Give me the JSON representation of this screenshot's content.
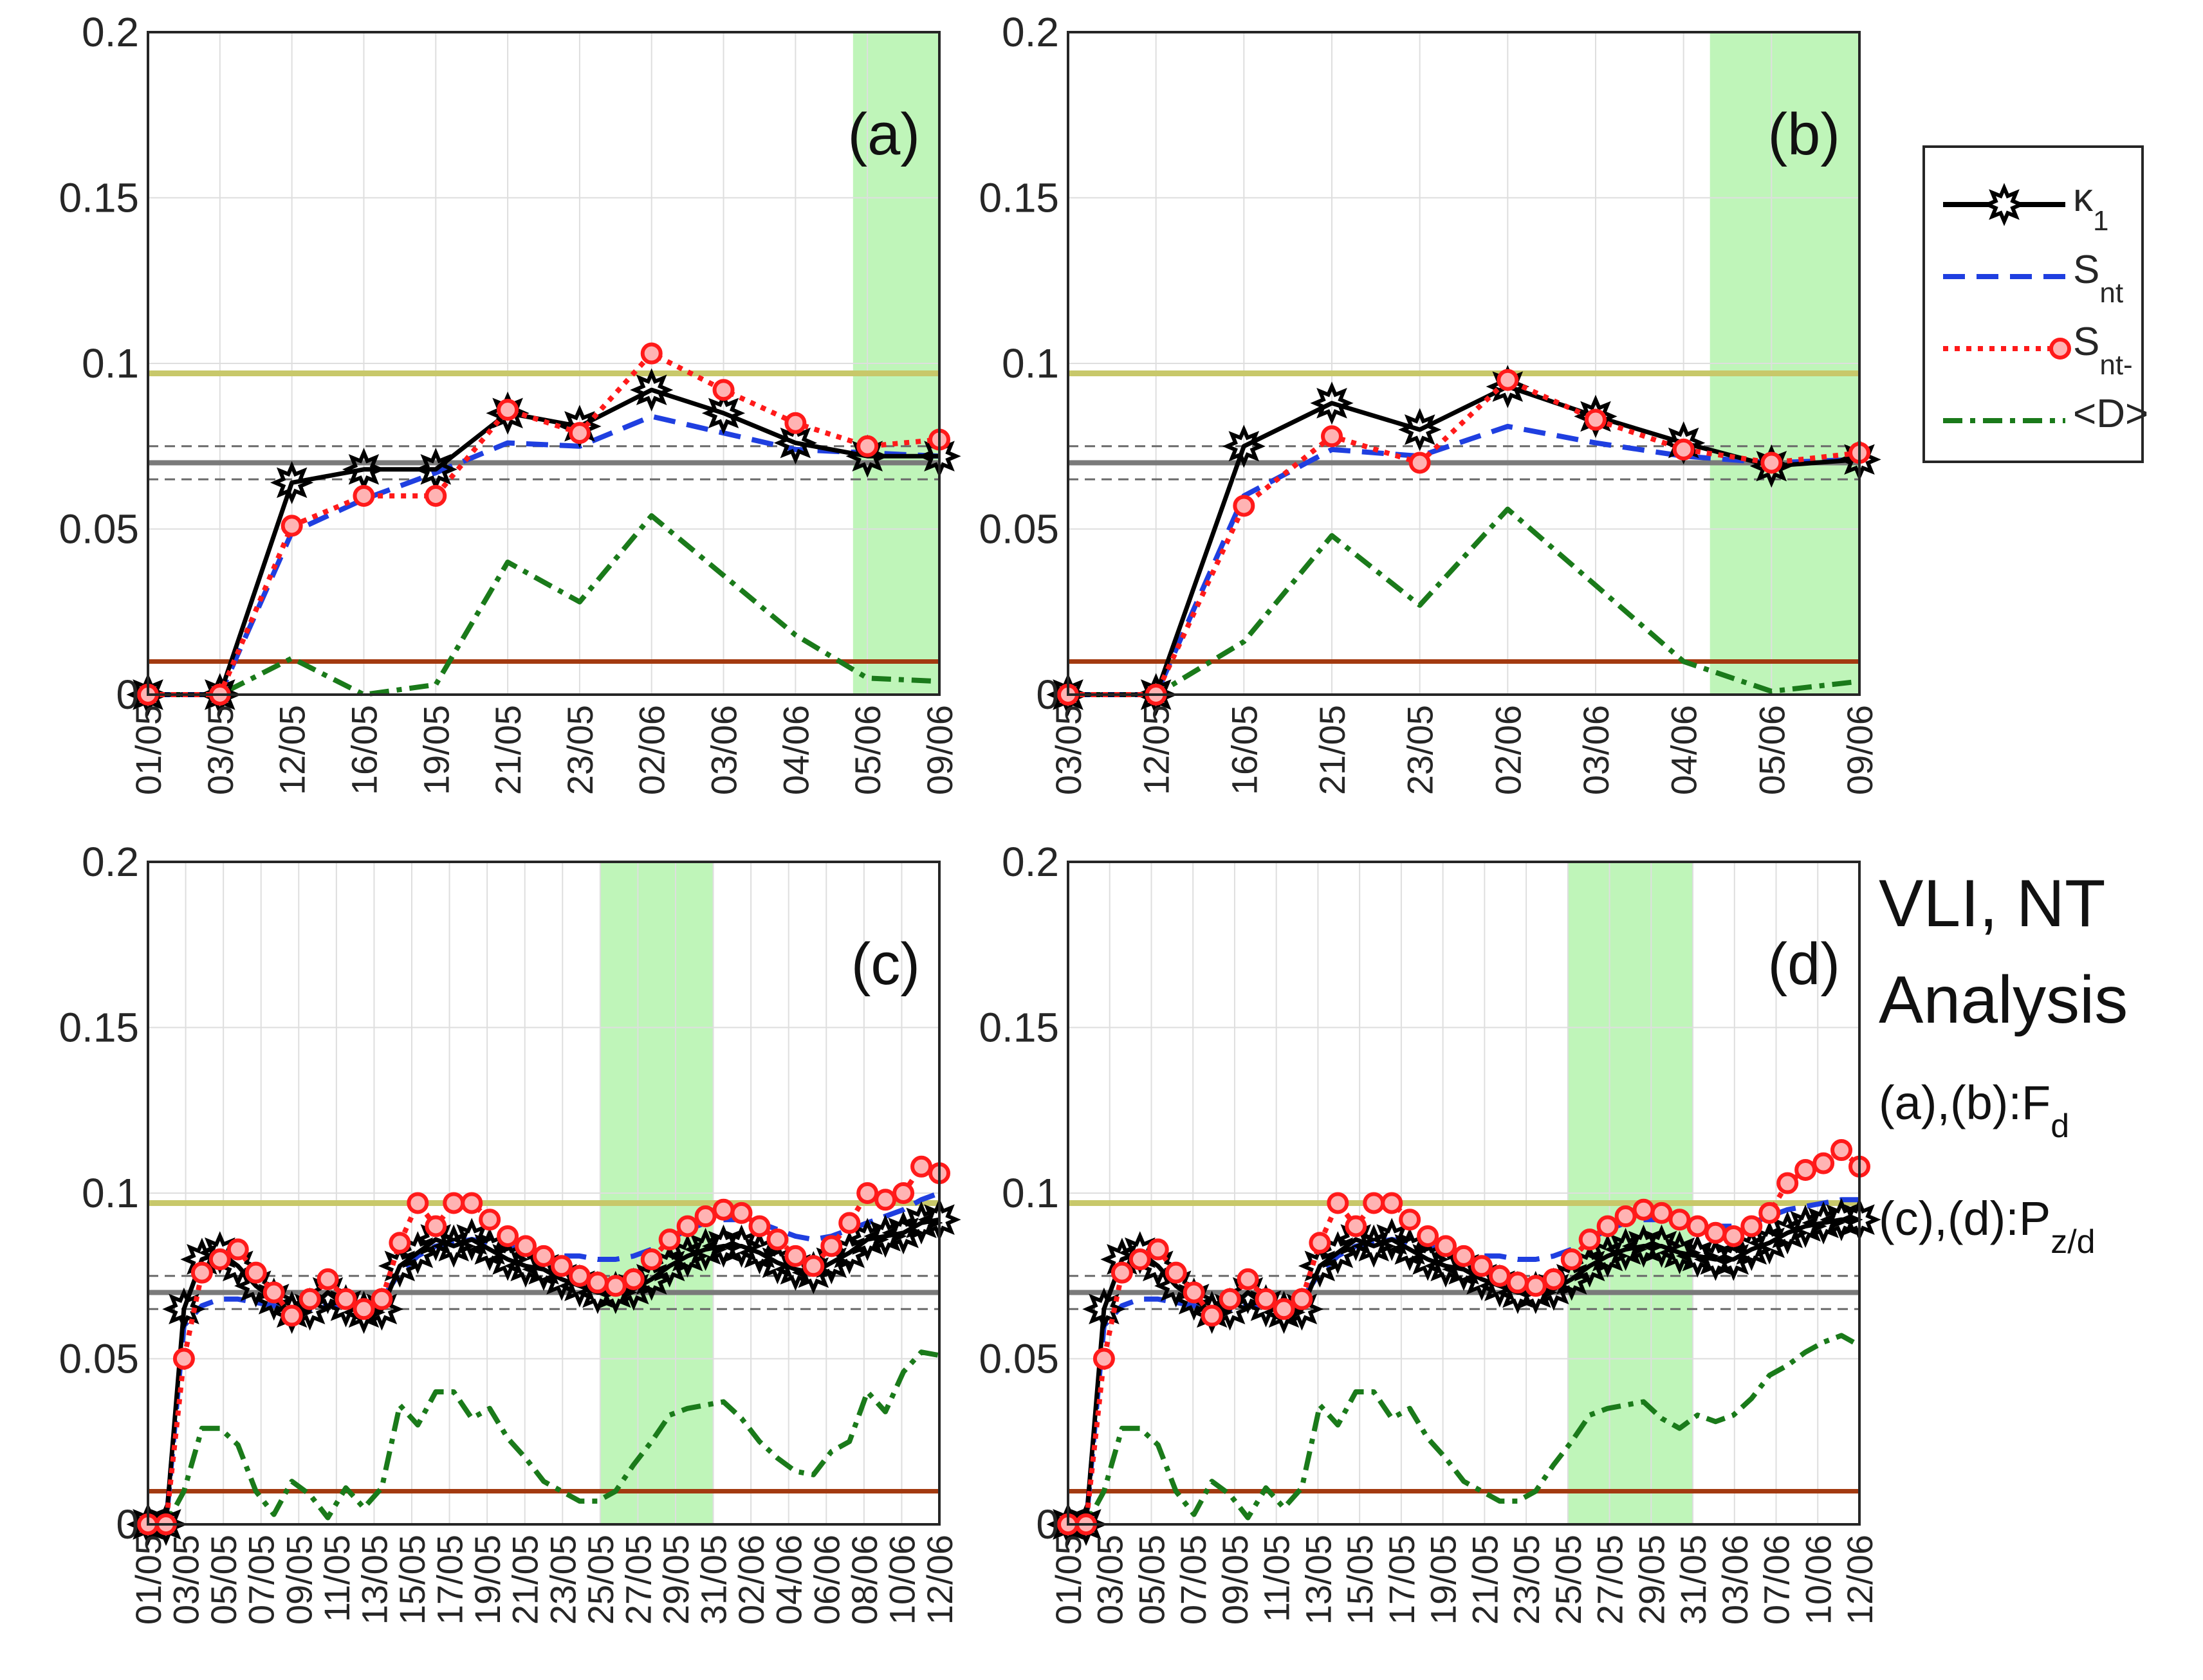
{
  "colors": {
    "kappa": "#000000",
    "snt": "#1f3fe0",
    "sntm": "#ff1a1a",
    "d": "#1a7a1a",
    "gray": "#7a7a7a",
    "olive": "#c8c86a",
    "brown": "#a33a10",
    "shade": "#bff5b9",
    "grid": "#dedede"
  },
  "legend": {
    "items": [
      {
        "key": "kappa",
        "label": "κ",
        "sub": "1",
        "style": "solid-marker"
      },
      {
        "key": "snt",
        "label": "S",
        "sub": "nt",
        "style": "dashed"
      },
      {
        "key": "sntm",
        "label": "S",
        "sub": "nt-",
        "style": "dotted-marker"
      },
      {
        "key": "d",
        "label": "<D>",
        "sub": "",
        "style": "dashdot"
      }
    ]
  },
  "caption": {
    "line1": "VLI, NT",
    "line2": "Analysis",
    "line3_main": "(a),(b):F",
    "line3_sub": "d",
    "line4_main": "(c),(d):P",
    "line4_sub": "z/d"
  },
  "chart_data": [
    {
      "type": "line",
      "id": "a",
      "panel_label": "(a)",
      "ylim": [
        0,
        0.2
      ],
      "yticks": [
        "0",
        "0.05",
        "0.1",
        "0.15",
        "0.2"
      ],
      "xticklabels": [
        "01/05",
        "03/05",
        "12/05",
        "16/05",
        "19/05",
        "21/05",
        "23/05",
        "02/06",
        "03/06",
        "04/06",
        "05/06",
        "09/06"
      ],
      "shade_index": [
        9.8,
        11
      ],
      "reference_lines": {
        "olive": 0.097,
        "gray": 0.07,
        "gray_dashed": [
          0.065,
          0.075
        ],
        "brown": 0.01
      },
      "series": [
        {
          "key": "kappa",
          "name": "κ1",
          "values": [
            0,
            0,
            0.064,
            0.068,
            0.068,
            0.085,
            0.081,
            0.092,
            0.085,
            0.076,
            0.072,
            0.072
          ]
        },
        {
          "key": "snt",
          "name": "Snt",
          "values": [
            0,
            0,
            0.049,
            0.059,
            0.067,
            0.076,
            0.075,
            0.084,
            0.079,
            0.074,
            0.073,
            0.072
          ]
        },
        {
          "key": "sntm",
          "name": "Snt-",
          "values": [
            0,
            0,
            0.051,
            0.06,
            0.06,
            0.086,
            0.079,
            0.103,
            0.092,
            0.082,
            0.075,
            0.077
          ]
        },
        {
          "key": "d",
          "name": "<D>",
          "values": [
            0,
            0,
            0.011,
            0.0,
            0.003,
            0.04,
            0.028,
            0.054,
            0.036,
            0.018,
            0.005,
            0.004
          ]
        }
      ]
    },
    {
      "type": "line",
      "id": "b",
      "panel_label": "(b)",
      "ylim": [
        0,
        0.2
      ],
      "yticks": [
        "0",
        "0.05",
        "0.1",
        "0.15",
        "0.2"
      ],
      "xticklabels": [
        "03/05",
        "12/05",
        "16/05",
        "21/05",
        "23/05",
        "02/06",
        "03/06",
        "04/06",
        "05/06",
        "09/06"
      ],
      "shade_index": [
        7.3,
        9
      ],
      "reference_lines": {
        "olive": 0.097,
        "gray": 0.07,
        "gray_dashed": [
          0.065,
          0.075
        ],
        "brown": 0.01
      },
      "series": [
        {
          "key": "kappa",
          "name": "κ1",
          "values": [
            0,
            0,
            0.075,
            0.088,
            0.08,
            0.093,
            0.084,
            0.076,
            0.069,
            0.071
          ]
        },
        {
          "key": "snt",
          "name": "Snt",
          "values": [
            0,
            0,
            0.06,
            0.074,
            0.072,
            0.081,
            0.076,
            0.072,
            0.07,
            0.071
          ]
        },
        {
          "key": "sntm",
          "name": "Snt-",
          "values": [
            0,
            0,
            0.057,
            0.078,
            0.07,
            0.095,
            0.083,
            0.074,
            0.07,
            0.073
          ]
        },
        {
          "key": "d",
          "name": "<D>",
          "values": [
            0,
            0,
            0.016,
            0.048,
            0.027,
            0.056,
            0.033,
            0.01,
            0.001,
            0.004
          ]
        }
      ]
    },
    {
      "type": "line",
      "id": "c",
      "panel_label": "(c)",
      "ylim": [
        0,
        0.2
      ],
      "yticks": [
        "0",
        "0.05",
        "0.1",
        "0.15",
        "0.2"
      ],
      "xticklabels": [
        "01/05",
        "03/05",
        "05/05",
        "07/05",
        "09/05",
        "11/05",
        "13/05",
        "15/05",
        "17/05",
        "19/05",
        "21/05",
        "23/05",
        "25/05",
        "27/05",
        "29/05",
        "31/05",
        "02/06",
        "04/06",
        "06/06",
        "08/06",
        "10/06",
        "12/06"
      ],
      "shade_index": [
        12,
        15
      ],
      "reference_lines": {
        "olive": 0.097,
        "gray": 0.07,
        "gray_dashed": [
          0.065,
          0.075
        ],
        "brown": 0.01
      },
      "series": [
        {
          "key": "kappa",
          "name": "κ1",
          "values": [
            0.0,
            0.0,
            0.065,
            0.08,
            0.082,
            0.078,
            0.072,
            0.068,
            0.064,
            0.065,
            0.07,
            0.066,
            0.064,
            0.065,
            0.078,
            0.082,
            0.086,
            0.084,
            0.086,
            0.083,
            0.08,
            0.078,
            0.077,
            0.074,
            0.072,
            0.07,
            0.07,
            0.071,
            0.074,
            0.078,
            0.081,
            0.083,
            0.084,
            0.084,
            0.082,
            0.079,
            0.077,
            0.076,
            0.079,
            0.082,
            0.086,
            0.087,
            0.088,
            0.091,
            0.092
          ]
        },
        {
          "key": "snt",
          "name": "Snt",
          "values": [
            0.0,
            0.0,
            0.06,
            0.066,
            0.068,
            0.068,
            0.067,
            0.066,
            0.065,
            0.065,
            0.066,
            0.066,
            0.066,
            0.068,
            0.076,
            0.081,
            0.084,
            0.085,
            0.086,
            0.085,
            0.084,
            0.083,
            0.082,
            0.081,
            0.081,
            0.08,
            0.08,
            0.081,
            0.083,
            0.086,
            0.089,
            0.091,
            0.092,
            0.092,
            0.091,
            0.089,
            0.087,
            0.086,
            0.087,
            0.089,
            0.091,
            0.093,
            0.095,
            0.098,
            0.1
          ]
        },
        {
          "key": "sntm",
          "name": "Snt-",
          "values": [
            0.0,
            0.0,
            0.05,
            0.076,
            0.08,
            0.083,
            0.076,
            0.07,
            0.063,
            0.068,
            0.074,
            0.068,
            0.065,
            0.068,
            0.085,
            0.097,
            0.09,
            0.097,
            0.097,
            0.092,
            0.087,
            0.084,
            0.081,
            0.078,
            0.075,
            0.073,
            0.072,
            0.074,
            0.08,
            0.086,
            0.09,
            0.093,
            0.095,
            0.094,
            0.09,
            0.086,
            0.081,
            0.078,
            0.084,
            0.091,
            0.1,
            0.098,
            0.1,
            0.108,
            0.106
          ]
        },
        {
          "key": "d",
          "name": "<D>",
          "values": [
            0.0,
            0.0,
            0.01,
            0.029,
            0.029,
            0.024,
            0.01,
            0.003,
            0.013,
            0.009,
            0.002,
            0.011,
            0.005,
            0.011,
            0.036,
            0.03,
            0.04,
            0.04,
            0.032,
            0.035,
            0.026,
            0.02,
            0.013,
            0.01,
            0.007,
            0.007,
            0.01,
            0.018,
            0.025,
            0.033,
            0.035,
            0.036,
            0.037,
            0.032,
            0.025,
            0.02,
            0.016,
            0.015,
            0.022,
            0.025,
            0.04,
            0.034,
            0.046,
            0.052,
            0.051
          ]
        }
      ]
    },
    {
      "type": "line",
      "id": "d",
      "panel_label": "(d)",
      "ylim": [
        0,
        0.2
      ],
      "yticks": [
        "0",
        "0.05",
        "0.1",
        "0.15",
        "0.2"
      ],
      "xticklabels": [
        "01/05",
        "03/05",
        "05/05",
        "07/05",
        "09/05",
        "11/05",
        "13/05",
        "15/05",
        "17/05",
        "19/05",
        "21/05",
        "23/05",
        "25/05",
        "27/05",
        "29/05",
        "31/05",
        "03/06",
        "07/06",
        "10/06",
        "12/06"
      ],
      "shade_index": [
        12,
        15
      ],
      "reference_lines": {
        "olive": 0.097,
        "gray": 0.07,
        "gray_dashed": [
          0.065,
          0.075
        ],
        "brown": 0.01
      },
      "series": [
        {
          "key": "kappa",
          "name": "κ1",
          "values": [
            0.0,
            0.0,
            0.065,
            0.08,
            0.082,
            0.078,
            0.072,
            0.068,
            0.064,
            0.065,
            0.07,
            0.066,
            0.064,
            0.065,
            0.078,
            0.082,
            0.086,
            0.084,
            0.086,
            0.083,
            0.08,
            0.078,
            0.077,
            0.074,
            0.072,
            0.07,
            0.07,
            0.071,
            0.074,
            0.078,
            0.081,
            0.083,
            0.084,
            0.084,
            0.082,
            0.081,
            0.08,
            0.08,
            0.083,
            0.085,
            0.088,
            0.09,
            0.091,
            0.092,
            0.092
          ]
        },
        {
          "key": "snt",
          "name": "Snt",
          "values": [
            0.0,
            0.0,
            0.06,
            0.066,
            0.068,
            0.068,
            0.067,
            0.066,
            0.065,
            0.065,
            0.066,
            0.066,
            0.066,
            0.068,
            0.076,
            0.081,
            0.084,
            0.085,
            0.086,
            0.085,
            0.084,
            0.083,
            0.082,
            0.081,
            0.081,
            0.08,
            0.08,
            0.081,
            0.083,
            0.086,
            0.089,
            0.091,
            0.092,
            0.092,
            0.091,
            0.09,
            0.09,
            0.09,
            0.091,
            0.093,
            0.095,
            0.096,
            0.097,
            0.098,
            0.098
          ]
        },
        {
          "key": "sntm",
          "name": "Snt-",
          "values": [
            0.0,
            0.0,
            0.05,
            0.076,
            0.08,
            0.083,
            0.076,
            0.07,
            0.063,
            0.068,
            0.074,
            0.068,
            0.065,
            0.068,
            0.085,
            0.097,
            0.09,
            0.097,
            0.097,
            0.092,
            0.087,
            0.084,
            0.081,
            0.078,
            0.075,
            0.073,
            0.072,
            0.074,
            0.08,
            0.086,
            0.09,
            0.093,
            0.095,
            0.094,
            0.092,
            0.09,
            0.088,
            0.087,
            0.09,
            0.094,
            0.103,
            0.107,
            0.109,
            0.113,
            0.108
          ]
        },
        {
          "key": "d",
          "name": "<D>",
          "values": [
            0.0,
            0.0,
            0.01,
            0.029,
            0.029,
            0.024,
            0.01,
            0.003,
            0.013,
            0.009,
            0.002,
            0.011,
            0.005,
            0.011,
            0.036,
            0.03,
            0.04,
            0.04,
            0.032,
            0.035,
            0.026,
            0.02,
            0.013,
            0.01,
            0.007,
            0.007,
            0.01,
            0.018,
            0.025,
            0.033,
            0.035,
            0.036,
            0.037,
            0.032,
            0.029,
            0.033,
            0.031,
            0.033,
            0.038,
            0.045,
            0.048,
            0.052,
            0.055,
            0.057,
            0.054
          ]
        }
      ]
    }
  ]
}
